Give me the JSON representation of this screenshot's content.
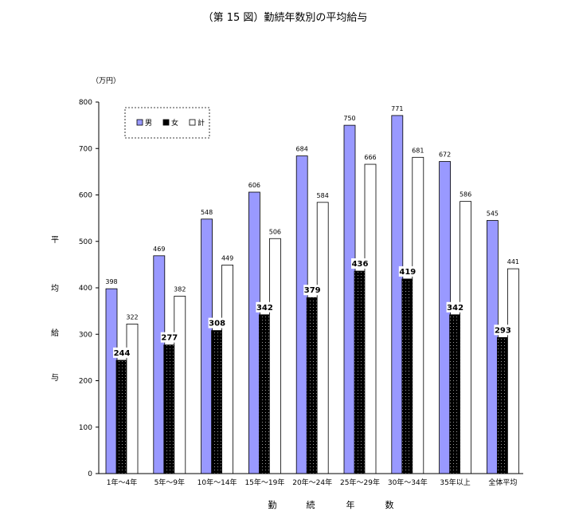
{
  "chart_data": {
    "type": "bar",
    "title": "（第 15 図）勤続年数別の平均給与",
    "unit_label": "（万円）",
    "ylabel": "平均給与",
    "xlabel": "勤続年数",
    "ylim": [
      0,
      800
    ],
    "yticks": [
      "0",
      "100",
      "200",
      "300",
      "400",
      "500",
      "600",
      "700",
      "800"
    ],
    "grid": false,
    "legend_position": "top-left",
    "categories": [
      "1年～4年",
      "5年～9年",
      "10年～14年",
      "15年～19年",
      "20年～24年",
      "25年～29年",
      "30年～34年",
      "35年以上",
      "全体平均"
    ],
    "series": [
      {
        "name": "男",
        "color": "#9999ff",
        "values": [
          398,
          469,
          548,
          606,
          684,
          750,
          771,
          672,
          545
        ]
      },
      {
        "name": "女",
        "color": "#000000",
        "values": [
          244,
          277,
          308,
          342,
          379,
          436,
          419,
          342,
          293
        ]
      },
      {
        "name": "計",
        "color": "#ffffff",
        "values": [
          322,
          382,
          449,
          506,
          584,
          666,
          681,
          586,
          441
        ]
      }
    ]
  }
}
